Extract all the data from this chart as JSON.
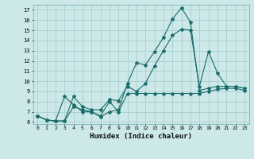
{
  "xlabel": "Humidex (Indice chaleur)",
  "bg_color": "#cce8e8",
  "line_color": "#1a6b6b",
  "grid_color": "#aacece",
  "xlim": [
    -0.5,
    23.5
  ],
  "ylim": [
    5.8,
    17.5
  ],
  "yticks": [
    6,
    7,
    8,
    9,
    10,
    11,
    12,
    13,
    14,
    15,
    16,
    17
  ],
  "xticks": [
    0,
    1,
    2,
    3,
    4,
    5,
    6,
    7,
    8,
    9,
    10,
    11,
    12,
    13,
    14,
    15,
    16,
    17,
    18,
    19,
    20,
    21,
    22,
    23
  ],
  "line1_x": [
    0,
    1,
    2,
    3,
    4,
    5,
    6,
    7,
    8,
    9,
    10,
    11,
    12,
    13,
    14,
    15,
    16,
    17,
    18,
    19,
    20,
    21,
    22,
    23
  ],
  "line1_y": [
    6.6,
    6.2,
    6.1,
    8.5,
    7.7,
    7.0,
    7.0,
    6.5,
    7.0,
    7.2,
    9.8,
    11.8,
    11.6,
    12.9,
    14.3,
    16.1,
    17.2,
    15.8,
    9.1,
    9.3,
    9.5,
    9.5,
    9.5,
    9.3
  ],
  "line2_x": [
    0,
    1,
    2,
    3,
    4,
    5,
    6,
    7,
    8,
    9,
    10,
    11,
    12,
    13,
    14,
    15,
    16,
    17,
    18,
    19,
    20,
    21,
    22,
    23
  ],
  "line2_y": [
    6.6,
    6.2,
    6.1,
    6.1,
    8.5,
    7.5,
    7.2,
    7.2,
    8.2,
    8.1,
    9.5,
    9.0,
    9.8,
    11.5,
    13.0,
    14.5,
    15.1,
    15.0,
    9.5,
    12.9,
    10.8,
    9.5,
    9.5,
    9.3
  ],
  "line3_x": [
    0,
    1,
    2,
    3,
    4,
    5,
    6,
    7,
    8,
    9,
    10,
    11,
    12,
    13,
    14,
    15,
    16,
    17,
    18,
    19,
    20,
    21,
    22,
    23
  ],
  "line3_y": [
    6.6,
    6.2,
    6.1,
    6.1,
    7.5,
    7.2,
    7.0,
    6.6,
    8.0,
    7.0,
    8.8,
    8.8,
    8.8,
    8.8,
    8.8,
    8.8,
    8.8,
    8.8,
    8.8,
    9.0,
    9.2,
    9.3,
    9.3,
    9.1
  ]
}
